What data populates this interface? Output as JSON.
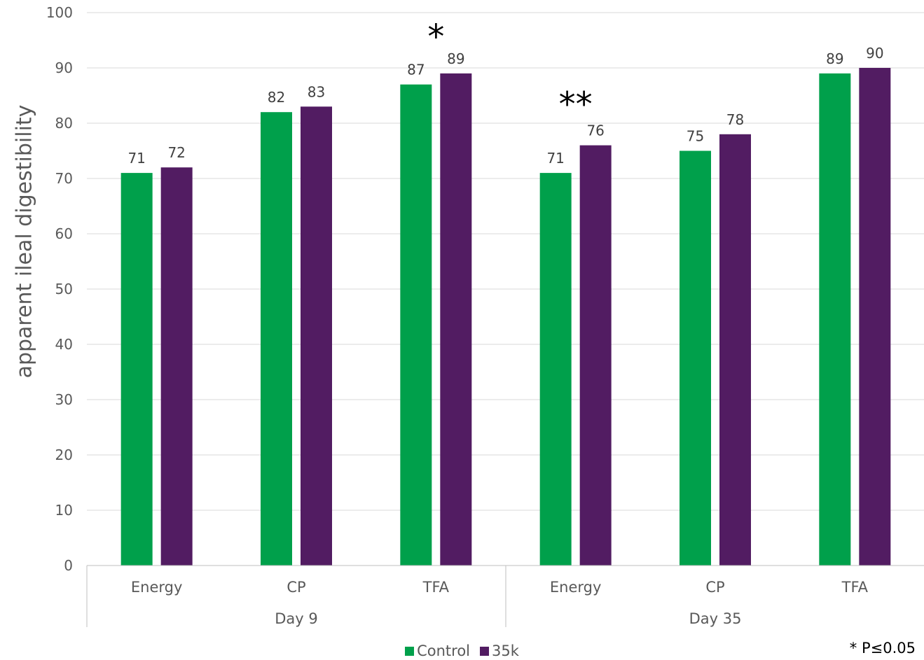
{
  "chart_data": {
    "type": "bar",
    "ylabel": "apparent ileal digestibility",
    "ylim": [
      0,
      100
    ],
    "y_ticks": [
      0,
      10,
      20,
      30,
      40,
      50,
      60,
      70,
      80,
      90,
      100
    ],
    "grid": true,
    "groups": [
      {
        "label": "Day 9",
        "categories": [
          "Energy",
          "CP",
          "TFA"
        ]
      },
      {
        "label": "Day 35",
        "categories": [
          "Energy",
          "CP",
          "TFA"
        ]
      }
    ],
    "series": [
      {
        "name": "Control",
        "color": "#00a04b",
        "values": [
          71,
          82,
          87,
          71,
          75,
          89
        ]
      },
      {
        "name": "35k",
        "color": "#521c62",
        "values": [
          72,
          83,
          89,
          76,
          78,
          90
        ]
      }
    ],
    "significance": [
      {
        "category_index": 2,
        "mark": "*"
      },
      {
        "category_index": 3,
        "mark": "**"
      }
    ],
    "footnote": "* P≤0.05",
    "legend_position": "bottom"
  }
}
